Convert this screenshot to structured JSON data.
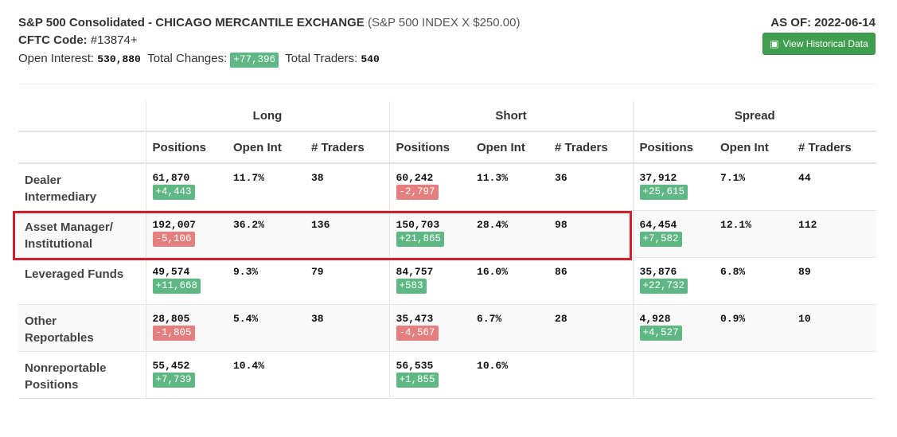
{
  "header": {
    "title": "S&P 500 Consolidated - CHICAGO MERCANTILE EXCHANGE",
    "title_note": "(S&P 500 INDEX X $250.00)",
    "cftc_label": "CFTC Code:",
    "cftc_value": "#13874+",
    "open_interest_label": "Open Interest:",
    "open_interest": "530,880",
    "total_changes_label": "Total Changes:",
    "total_changes": "+77,396",
    "total_traders_label": "Total Traders:",
    "total_traders": "540",
    "as_of": "AS OF: 2022-06-14",
    "button": "View Historical Data"
  },
  "table": {
    "groups": [
      "Long",
      "Short",
      "Spread"
    ],
    "columns": [
      "Positions",
      "Open Int",
      "# Traders"
    ],
    "rows": [
      {
        "label": "Dealer Intermediary",
        "cells": [
          {
            "positions": "61,870",
            "change": "+4,443",
            "open_int": "11.7%",
            "traders": "38"
          },
          {
            "positions": "60,242",
            "change": "-2,797",
            "open_int": "11.3%",
            "traders": "36"
          },
          {
            "positions": "37,912",
            "change": "+25,615",
            "open_int": "7.1%",
            "traders": "44"
          }
        ]
      },
      {
        "label": "Asset Manager/ Institutional",
        "cells": [
          {
            "positions": "192,007",
            "change": "-5,106",
            "open_int": "36.2%",
            "traders": "136"
          },
          {
            "positions": "150,703",
            "change": "+21,865",
            "open_int": "28.4%",
            "traders": "98"
          },
          {
            "positions": "64,454",
            "change": "+7,582",
            "open_int": "12.1%",
            "traders": "112"
          }
        ]
      },
      {
        "label": "Leveraged Funds",
        "cells": [
          {
            "positions": "49,574",
            "change": "+11,668",
            "open_int": "9.3%",
            "traders": "79"
          },
          {
            "positions": "84,757",
            "change": "+583",
            "open_int": "16.0%",
            "traders": "86"
          },
          {
            "positions": "35,876",
            "change": "+22,732",
            "open_int": "6.8%",
            "traders": "89"
          }
        ]
      },
      {
        "label": "Other Reportables",
        "cells": [
          {
            "positions": "28,805",
            "change": "-1,805",
            "open_int": "5.4%",
            "traders": "38"
          },
          {
            "positions": "35,473",
            "change": "-4,567",
            "open_int": "6.7%",
            "traders": "28"
          },
          {
            "positions": "4,928",
            "change": "+4,527",
            "open_int": "0.9%",
            "traders": "10"
          }
        ]
      },
      {
        "label": "Nonreportable Positions",
        "cells": [
          {
            "positions": "55,452",
            "change": "+7,739",
            "open_int": "10.4%"
          },
          {
            "positions": "56,535",
            "change": "+1,855",
            "open_int": "10.6%"
          }
        ]
      }
    ]
  }
}
